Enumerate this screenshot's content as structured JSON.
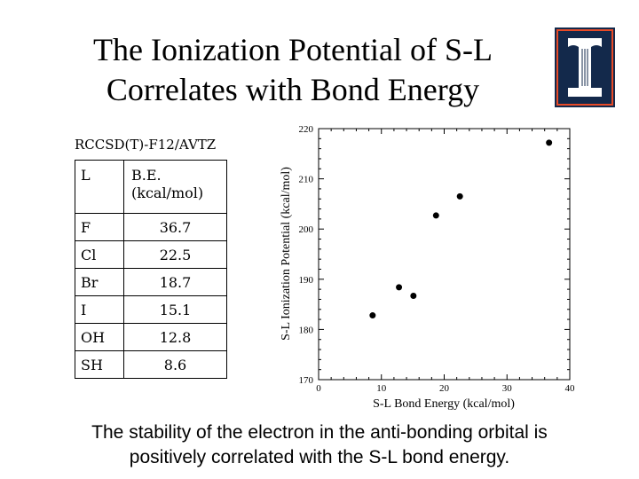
{
  "slide": {
    "title_line1": "The Ionization Potential of S-L",
    "title_line2": "Correlates with Bond Energy",
    "method": "RCCSD(T)-F12/AVTZ",
    "caption_line1": "The stability of the electron in the anti-bonding orbital is",
    "caption_line2": "positively correlated with the S-L bond energy.",
    "logo_color": "#13294B",
    "logo_accent": "#E84A27"
  },
  "table": {
    "header_l": "L",
    "header_be_1": "B.E.",
    "header_be_2": "(kcal/mol)",
    "rows": [
      {
        "l": "F",
        "be": "36.7"
      },
      {
        "l": "Cl",
        "be": "22.5"
      },
      {
        "l": "Br",
        "be": "18.7"
      },
      {
        "l": "I",
        "be": "15.1"
      },
      {
        "l": "OH",
        "be": "12.8"
      },
      {
        "l": "SH",
        "be": "8.6"
      }
    ]
  },
  "chart_data": {
    "type": "scatter",
    "xlabel": "S-L Bond Energy (kcal/mol)",
    "ylabel": "S-L Ionization Potential (kcal/mol)",
    "xlim": [
      0,
      40
    ],
    "ylim": [
      170,
      220
    ],
    "xticks": [
      0,
      10,
      20,
      30,
      40
    ],
    "yticks": [
      170,
      180,
      190,
      200,
      210,
      220
    ],
    "points": [
      {
        "x": 8.6,
        "y": 182.8
      },
      {
        "x": 12.8,
        "y": 188.4
      },
      {
        "x": 15.1,
        "y": 186.7
      },
      {
        "x": 18.7,
        "y": 202.7
      },
      {
        "x": 22.5,
        "y": 206.5
      },
      {
        "x": 36.7,
        "y": 217.2
      }
    ]
  }
}
